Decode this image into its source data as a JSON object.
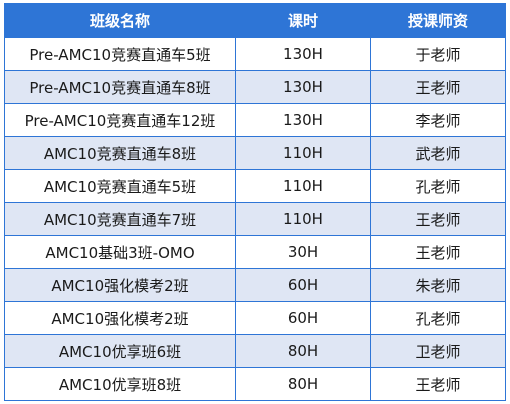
{
  "table": {
    "headers": [
      "班级名称",
      "课时",
      "授课师资"
    ],
    "rows": [
      [
        "Pre-AMC10竞赛直通车5班",
        "130H",
        "于老师"
      ],
      [
        "Pre-AMC10竞赛直通车8班",
        "130H",
        "王老师"
      ],
      [
        "Pre-AMC10竞赛直通车12班",
        "130H",
        "李老师"
      ],
      [
        "AMC10竞赛直通车8班",
        "110H",
        "武老师"
      ],
      [
        "AMC10竞赛直通车5班",
        "110H",
        "孔老师"
      ],
      [
        "AMC10竞赛直通车7班",
        "110H",
        "王老师"
      ],
      [
        "AMC10基础3班-OMO",
        "30H",
        "王老师"
      ],
      [
        "AMC10强化模考2班",
        "60H",
        "朱老师"
      ],
      [
        "AMC10强化模考2班",
        "60H",
        "孔老师"
      ],
      [
        "AMC10优享班6班",
        "80H",
        "卫老师"
      ],
      [
        "AMC10优享班8班",
        "80H",
        "王老师"
      ]
    ]
  },
  "colors": {
    "header_bg": "#2E75D6",
    "header_text": "#FFFFFF",
    "stripe_bg": "#DFE6F4",
    "border": "#2E75D6"
  }
}
